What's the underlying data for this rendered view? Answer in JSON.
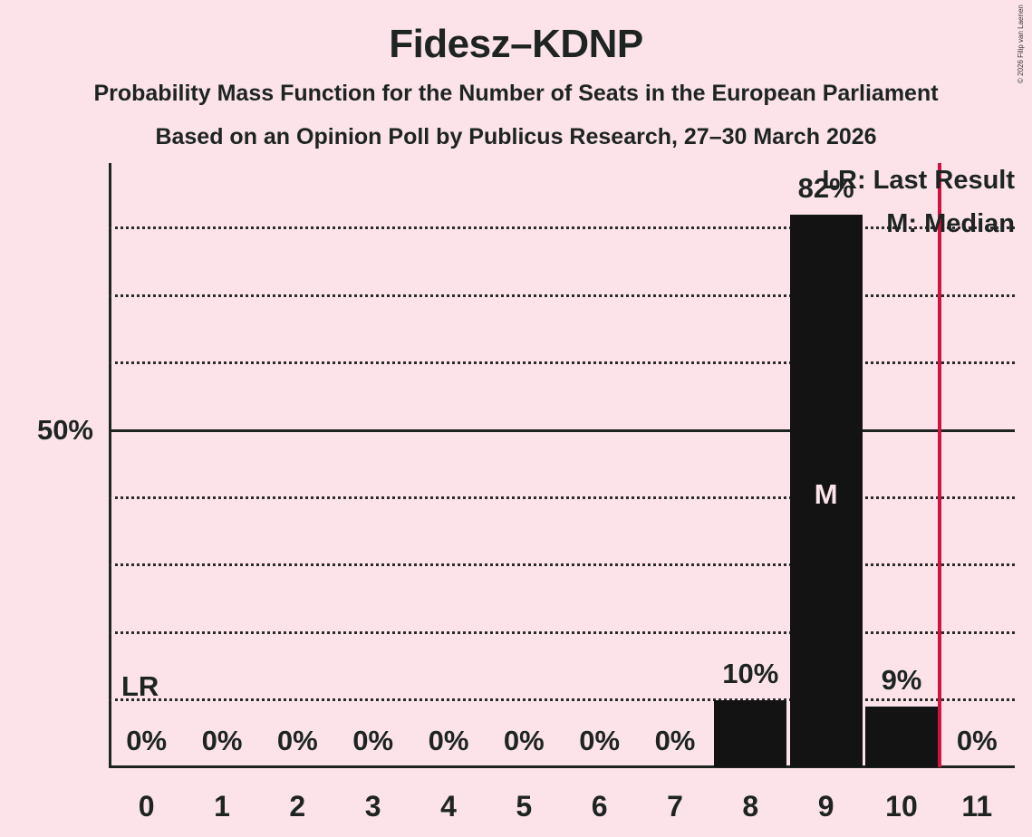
{
  "title": "Fidesz–KDNP",
  "subtitle1": "Probability Mass Function for the Number of Seats in the European Parliament",
  "subtitle2": "Based on an Opinion Poll by Publicus Research, 27–30 March 2026",
  "copyright": "© 2026 Filip van Laenen",
  "legend": {
    "lr": "LR: Last Result",
    "m": "M: Median",
    "position": "top-right"
  },
  "y_axis": {
    "label_50": "50%"
  },
  "annotations": {
    "lr_marker": "LR",
    "median_marker": "M"
  },
  "colors": {
    "background": "#fbe3e9",
    "bar": "#131313",
    "text": "#1d2422",
    "red_line": "#d11243",
    "bar_label": "#fbe3e9"
  },
  "chart_data": {
    "type": "bar",
    "title": "Fidesz–KDNP",
    "xlabel": "",
    "ylabel": "",
    "categories": [
      0,
      1,
      2,
      3,
      4,
      5,
      6,
      7,
      8,
      9,
      10,
      11
    ],
    "values": [
      0,
      0,
      0,
      0,
      0,
      0,
      0,
      0,
      10,
      82,
      9,
      0
    ],
    "value_labels": [
      "0%",
      "0%",
      "0%",
      "0%",
      "0%",
      "0%",
      "0%",
      "0%",
      "10%",
      "82%",
      "9%",
      "0%"
    ],
    "median_seat": 9,
    "last_result_line_x": 10.5,
    "ylim": [
      0,
      90
    ],
    "y_solid_gridline": 50,
    "y_dotted_gridlines": [
      10,
      20,
      30,
      40,
      60,
      70,
      80
    ],
    "y_tick_labels": [
      {
        "value": 50,
        "label": "50%"
      }
    ],
    "grid": "dotted-horizontal",
    "legend_position": "top-right"
  }
}
